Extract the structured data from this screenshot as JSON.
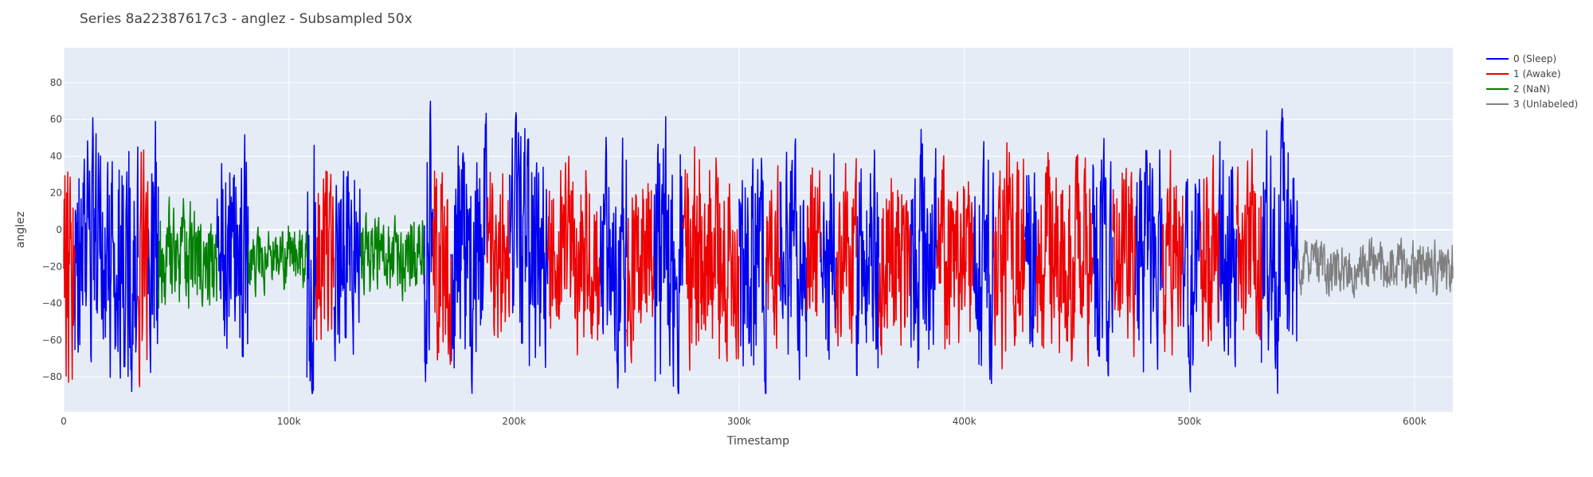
{
  "chart_data": {
    "type": "line",
    "title": "Series 8a22387617c3 - anglez - Subsampled 50x",
    "xlabel": "Timestamp",
    "ylabel": "anglez",
    "xlim": [
      0,
      617000
    ],
    "ylim": [
      -99,
      99
    ],
    "xticks": [
      0,
      100000,
      200000,
      300000,
      400000,
      500000,
      600000
    ],
    "xtick_labels": [
      "0",
      "100k",
      "200k",
      "300k",
      "400k",
      "500k",
      "600k"
    ],
    "yticks": [
      -80,
      -60,
      -40,
      -20,
      0,
      20,
      40,
      60,
      80
    ],
    "ytick_labels": [
      "−80",
      "−60",
      "−40",
      "−20",
      "0",
      "20",
      "40",
      "60",
      "80"
    ],
    "grid": true,
    "plot_background": "#e5ecf6",
    "legend_position": "top-right",
    "series": [
      {
        "name": "0 (Sleep)",
        "color": "#0000ee",
        "segments": [
          [
            5000,
            33000
          ],
          [
            37500,
            42000
          ],
          [
            68000,
            82000
          ],
          [
            108000,
            112000
          ],
          [
            120000,
            132000
          ],
          [
            160000,
            164000
          ],
          [
            172000,
            188000
          ],
          [
            198000,
            215000
          ],
          [
            238000,
            250000
          ],
          [
            262000,
            275000
          ],
          [
            300000,
            312000
          ],
          [
            318000,
            330000
          ],
          [
            336000,
            343000
          ],
          [
            352000,
            362000
          ],
          [
            376000,
            388000
          ],
          [
            404000,
            413000
          ],
          [
            427000,
            432000
          ],
          [
            457000,
            466000
          ],
          [
            476000,
            488000
          ],
          [
            497000,
            505000
          ],
          [
            513000,
            521000
          ],
          [
            532000,
            548000
          ]
        ],
        "segment_amplitudes": [
          58,
          60,
          50,
          72,
          42,
          72,
          58,
          56,
          52,
          62,
          58,
          52,
          50,
          54,
          52,
          58,
          48,
          54,
          52,
          50,
          52,
          58
        ]
      },
      {
        "name": "1 (Awake)",
        "color": "#ee0000",
        "segments": [
          [
            0,
            5000
          ],
          [
            33000,
            37500
          ],
          [
            112000,
            120000
          ],
          [
            164000,
            172000
          ],
          [
            188000,
            198000
          ],
          [
            215000,
            238000
          ],
          [
            250000,
            262000
          ],
          [
            275000,
            300000
          ],
          [
            312000,
            318000
          ],
          [
            330000,
            336000
          ],
          [
            343000,
            352000
          ],
          [
            362000,
            376000
          ],
          [
            388000,
            404000
          ],
          [
            413000,
            427000
          ],
          [
            432000,
            457000
          ],
          [
            466000,
            476000
          ],
          [
            488000,
            497000
          ],
          [
            505000,
            513000
          ],
          [
            521000,
            532000
          ]
        ],
        "segment_amplitudes": [
          60,
          55,
          40,
          50,
          40,
          45,
          44,
          50,
          40,
          44,
          44,
          44,
          44,
          50,
          48,
          46,
          46,
          44,
          44
        ]
      },
      {
        "name": "2 (NaN)",
        "color": "#008000",
        "segments": [
          [
            42000,
            68000
          ],
          [
            82000,
            108000
          ],
          [
            132000,
            160000
          ]
        ],
        "segment_amplitudes": [
          24,
          16,
          18
        ]
      },
      {
        "name": "3 (Unlabeled)",
        "color": "#808080",
        "segments": [
          [
            548000,
            617000
          ]
        ],
        "segment_amplitudes": [
          12
        ],
        "segment_center": -20
      }
    ]
  }
}
